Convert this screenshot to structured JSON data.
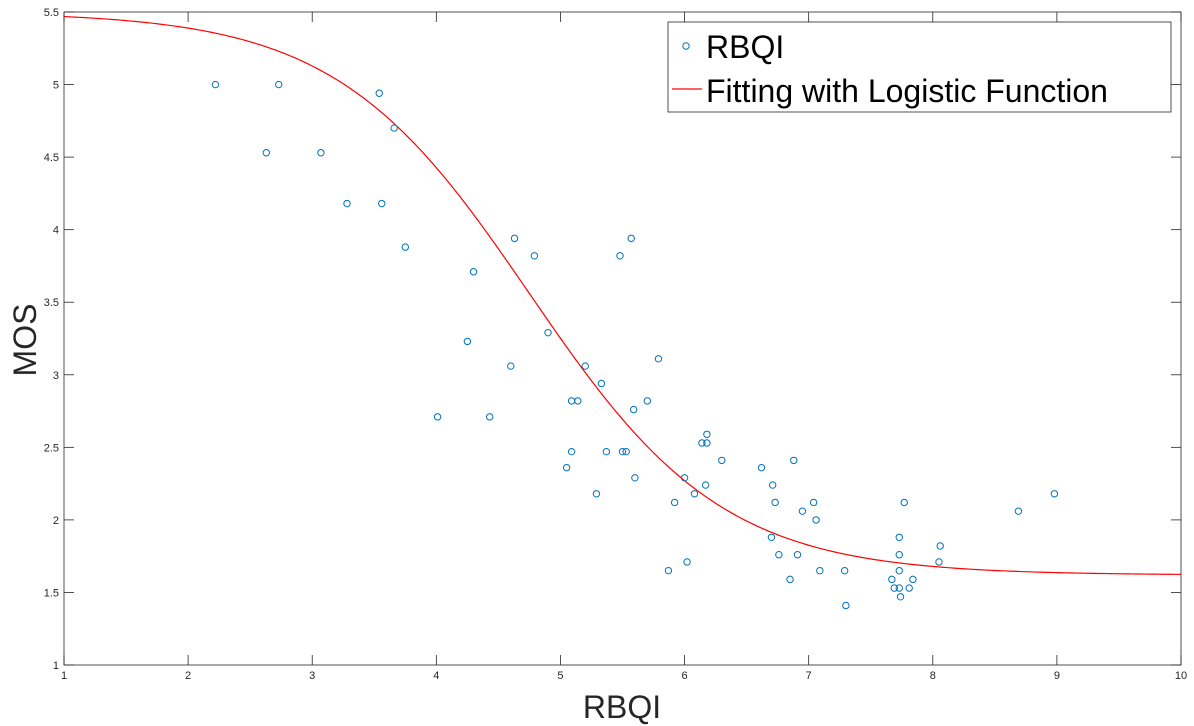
{
  "chart_data": {
    "type": "scatter",
    "xlabel": "RBQI",
    "ylabel": "MOS",
    "xlim": [
      1,
      10
    ],
    "ylim": [
      1,
      5.5
    ],
    "xticks": [
      "1",
      "2",
      "3",
      "4",
      "5",
      "6",
      "7",
      "8",
      "9",
      "10"
    ],
    "yticks": [
      "1",
      "1.5",
      "2",
      "2.5",
      "3",
      "3.5",
      "4",
      "4.5",
      "5",
      "5.5"
    ],
    "grid": false,
    "legend_position": "top-right",
    "series": [
      {
        "name": "RBQI",
        "kind": "scatter",
        "color": "#0072BD",
        "points": [
          [
            2.22,
            5.0
          ],
          [
            2.73,
            5.0
          ],
          [
            2.63,
            4.53
          ],
          [
            3.07,
            4.53
          ],
          [
            3.28,
            4.18
          ],
          [
            3.54,
            4.94
          ],
          [
            3.66,
            4.7
          ],
          [
            3.56,
            4.18
          ],
          [
            3.75,
            3.88
          ],
          [
            4.01,
            2.71
          ],
          [
            4.25,
            3.23
          ],
          [
            4.3,
            3.71
          ],
          [
            4.43,
            2.71
          ],
          [
            4.6,
            3.06
          ],
          [
            4.63,
            3.94
          ],
          [
            4.79,
            3.82
          ],
          [
            4.9,
            3.29
          ],
          [
            5.05,
            2.36
          ],
          [
            5.09,
            2.47
          ],
          [
            5.09,
            2.82
          ],
          [
            5.14,
            2.82
          ],
          [
            5.2,
            3.06
          ],
          [
            5.29,
            2.18
          ],
          [
            5.33,
            2.94
          ],
          [
            5.37,
            2.47
          ],
          [
            5.48,
            3.82
          ],
          [
            5.5,
            2.47
          ],
          [
            5.53,
            2.47
          ],
          [
            5.57,
            3.94
          ],
          [
            5.59,
            2.76
          ],
          [
            5.6,
            2.29
          ],
          [
            5.7,
            2.82
          ],
          [
            5.79,
            3.11
          ],
          [
            5.87,
            1.65
          ],
          [
            5.92,
            2.12
          ],
          [
            6.0,
            2.29
          ],
          [
            6.02,
            1.71
          ],
          [
            6.08,
            2.18
          ],
          [
            6.14,
            2.53
          ],
          [
            6.17,
            2.24
          ],
          [
            6.18,
            2.59
          ],
          [
            6.18,
            2.53
          ],
          [
            6.3,
            2.41
          ],
          [
            6.62,
            2.36
          ],
          [
            6.7,
            1.88
          ],
          [
            6.71,
            2.24
          ],
          [
            6.73,
            2.12
          ],
          [
            6.76,
            1.76
          ],
          [
            6.85,
            1.59
          ],
          [
            6.88,
            2.41
          ],
          [
            6.91,
            1.76
          ],
          [
            6.95,
            2.06
          ],
          [
            7.04,
            2.12
          ],
          [
            7.06,
            2.0
          ],
          [
            7.09,
            1.65
          ],
          [
            7.29,
            1.65
          ],
          [
            7.3,
            1.41
          ],
          [
            7.67,
            1.59
          ],
          [
            7.69,
            1.53
          ],
          [
            7.73,
            1.53
          ],
          [
            7.73,
            1.65
          ],
          [
            7.73,
            1.76
          ],
          [
            7.73,
            1.88
          ],
          [
            7.74,
            1.47
          ],
          [
            7.77,
            2.12
          ],
          [
            7.81,
            1.53
          ],
          [
            7.84,
            1.59
          ],
          [
            8.05,
            1.71
          ],
          [
            8.06,
            1.82
          ],
          [
            8.69,
            2.06
          ],
          [
            8.98,
            2.18
          ]
        ]
      },
      {
        "name": "Fitting with Logistic Function",
        "kind": "line",
        "color": "#FF0000",
        "model": "logistic",
        "params": {
          "lower": 1.62,
          "upper": 5.5,
          "center": 4.75,
          "scale": 0.78
        }
      }
    ]
  }
}
